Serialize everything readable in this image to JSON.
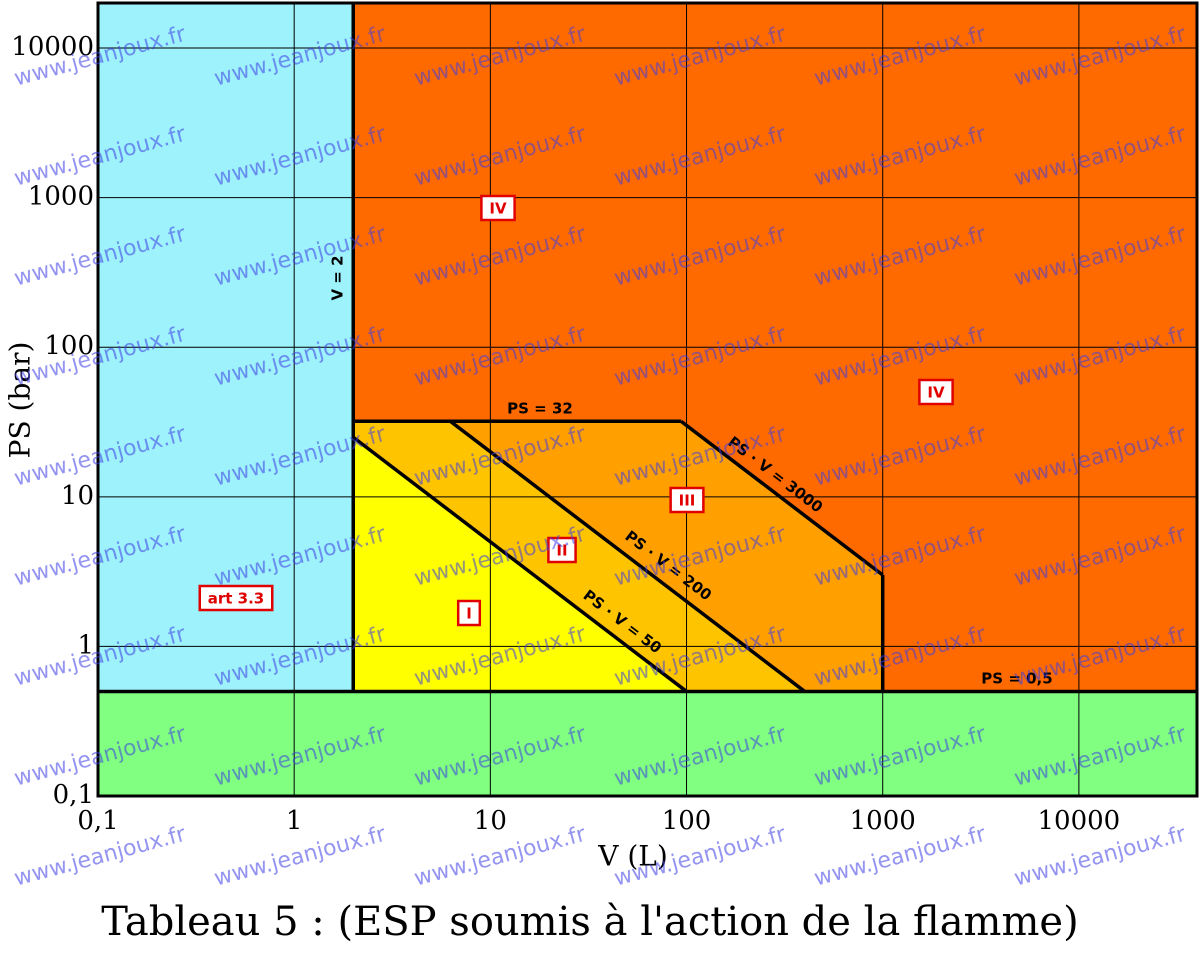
{
  "chart_data": {
    "type": "region-map",
    "title": "Tableau 5 : (ESP soumis à l'action de la flamme)",
    "x_label": "V (L)",
    "y_label": "PS (bar)",
    "log_x": true,
    "log_y": true,
    "grid": true,
    "xlim": [
      0.1,
      40000
    ],
    "ylim": [
      0.1,
      20000
    ],
    "xticks": [
      {
        "value": 0.1,
        "label": "0,1"
      },
      1,
      10,
      100,
      1000,
      10000
    ],
    "yticks": [
      {
        "value": 0.1,
        "label": "0,1"
      },
      1,
      10,
      100,
      1000,
      10000
    ],
    "boundaries": [
      {
        "label": "V = 2",
        "kind": "V",
        "value": 2
      },
      {
        "label": "PS = 0,5",
        "kind": "PS",
        "value": 0.5
      },
      {
        "label": "PS = 32",
        "kind": "PS",
        "value": 32
      },
      {
        "label": "PS · V = 50",
        "kind": "PS·V",
        "value": 50
      },
      {
        "label": "PS · V = 200",
        "kind": "PS·V",
        "value": 200
      },
      {
        "label": "PS · V = 3000",
        "kind": "PS·V",
        "value": 3000
      },
      {
        "label": null,
        "kind": "V",
        "value": 1000
      }
    ],
    "regions": [
      {
        "labels": [
          "art 3.3"
        ],
        "color": "#9ef2fb"
      },
      {
        "labels": [],
        "color": "#80ff80"
      },
      {
        "labels": [
          "IV",
          "IV"
        ],
        "color": "#ff6a00"
      },
      {
        "labels": [
          "III"
        ],
        "color": "#ff9f00"
      },
      {
        "labels": [
          "II"
        ],
        "color": "#ffc400"
      },
      {
        "labels": [
          "I"
        ],
        "color": "#ffff00"
      }
    ],
    "watermark": "www.jeanjoux.fr"
  }
}
